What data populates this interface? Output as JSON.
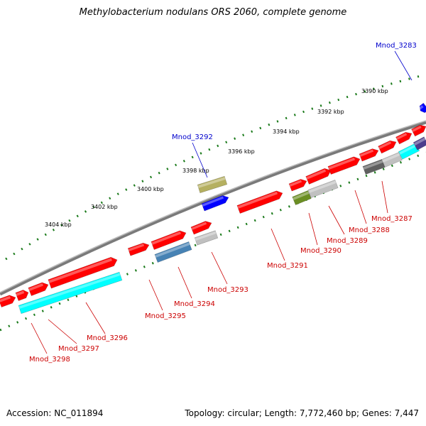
{
  "title": "Methylobacterium nodulans ORS 2060, complete genome",
  "footer": {
    "accession": "Accession: NC_011894",
    "stats": "Topology: circular; Length: 7,772,460 bp; Genes: 7,447"
  },
  "colors": {
    "backbone": "#808080",
    "tick": "#1a7a1a",
    "red_gene": "#ff0000",
    "cyan_gene": "#00ffff",
    "blue_gene": "#0000ff",
    "olive_gene": "#b5b060",
    "green_gene": "#6b8e23",
    "grey_gene": "#c0c0c0",
    "dark_grey_gene": "#606060",
    "steel_gene": "#4682b4",
    "purple_gene": "#4b3c8c",
    "label_red": "#cc0000",
    "label_blue": "#0000cc"
  },
  "kbp_labels": [
    "3390 kbp",
    "3392 kbp",
    "3394 kbp",
    "3396 kbp",
    "3398 kbp",
    "3400 kbp",
    "3402 kbp",
    "3404 kbp"
  ],
  "gene_labels": [
    {
      "text": "Mnod_3283",
      "color": "blue"
    },
    {
      "text": "Mnod_3292",
      "color": "blue"
    },
    {
      "text": "Mnod_3287",
      "color": "red"
    },
    {
      "text": "Mnod_3288",
      "color": "red"
    },
    {
      "text": "Mnod_3289",
      "color": "red"
    },
    {
      "text": "Mnod_3290",
      "color": "red"
    },
    {
      "text": "Mnod_3291",
      "color": "red"
    },
    {
      "text": "Mnod_3293",
      "color": "red"
    },
    {
      "text": "Mnod_3294",
      "color": "red"
    },
    {
      "text": "Mnod_3295",
      "color": "red"
    },
    {
      "text": "Mnod_3296",
      "color": "red"
    },
    {
      "text": "Mnod_3297",
      "color": "red"
    },
    {
      "text": "Mnod_3298",
      "color": "red"
    }
  ]
}
